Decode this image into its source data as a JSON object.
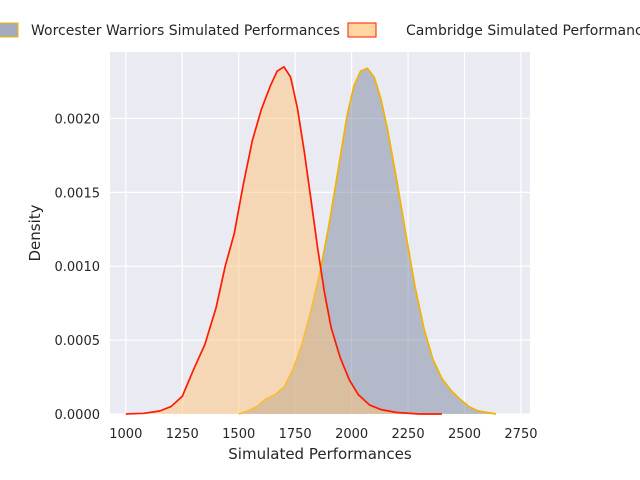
{
  "chart_data": {
    "type": "area",
    "title": "",
    "xlabel": "Simulated Performances",
    "ylabel": "Density",
    "xlim": [
      930,
      2790
    ],
    "ylim": [
      0,
      0.00245
    ],
    "x_ticks": [
      1000,
      1250,
      1500,
      1750,
      2000,
      2250,
      2500,
      2750
    ],
    "x_tick_labels": [
      "1000",
      "1250",
      "1500",
      "1750",
      "2000",
      "2250",
      "2500",
      "2750"
    ],
    "y_ticks": [
      0,
      0.0005,
      0.001,
      0.0015,
      0.002
    ],
    "y_tick_labels": [
      "0.0000",
      "0.0005",
      "0.0010",
      "0.0015",
      "0.0020"
    ],
    "grid": true,
    "legend_position": "top",
    "series": [
      {
        "name": "Worcester Warriors Simulated Performances",
        "fill": "#7d879f",
        "line": "#f0b400",
        "points": [
          [
            1500,
            0
          ],
          [
            1540,
            2e-05
          ],
          [
            1580,
            5e-05
          ],
          [
            1620,
            0.0001
          ],
          [
            1660,
            0.00013
          ],
          [
            1700,
            0.00018
          ],
          [
            1740,
            0.0003
          ],
          [
            1780,
            0.00047
          ],
          [
            1820,
            0.0007
          ],
          [
            1860,
            0.00096
          ],
          [
            1900,
            0.00128
          ],
          [
            1940,
            0.00165
          ],
          [
            1980,
            0.00202
          ],
          [
            2010,
            0.00222
          ],
          [
            2040,
            0.00232
          ],
          [
            2070,
            0.00234
          ],
          [
            2100,
            0.00228
          ],
          [
            2130,
            0.00213
          ],
          [
            2160,
            0.00192
          ],
          [
            2200,
            0.00158
          ],
          [
            2240,
            0.00122
          ],
          [
            2280,
            0.00087
          ],
          [
            2320,
            0.00058
          ],
          [
            2360,
            0.00037
          ],
          [
            2400,
            0.00024
          ],
          [
            2440,
            0.00016
          ],
          [
            2480,
            0.0001
          ],
          [
            2520,
            5e-05
          ],
          [
            2560,
            2e-05
          ],
          [
            2600,
            1e-05
          ],
          [
            2640,
            0
          ]
        ]
      },
      {
        "name": "Cambridge Simulated Performances",
        "fill": "#ffc477",
        "line": "#ff1a00",
        "points": [
          [
            1000,
            0
          ],
          [
            1080,
            5e-06
          ],
          [
            1150,
            2e-05
          ],
          [
            1200,
            5e-05
          ],
          [
            1250,
            0.00012
          ],
          [
            1300,
            0.0003
          ],
          [
            1350,
            0.00047
          ],
          [
            1400,
            0.00072
          ],
          [
            1440,
            0.001
          ],
          [
            1480,
            0.00122
          ],
          [
            1520,
            0.00155
          ],
          [
            1560,
            0.00185
          ],
          [
            1600,
            0.00206
          ],
          [
            1640,
            0.00222
          ],
          [
            1670,
            0.00232
          ],
          [
            1700,
            0.00235
          ],
          [
            1730,
            0.00228
          ],
          [
            1760,
            0.00207
          ],
          [
            1790,
            0.00178
          ],
          [
            1820,
            0.00145
          ],
          [
            1850,
            0.00112
          ],
          [
            1880,
            0.00082
          ],
          [
            1910,
            0.00058
          ],
          [
            1950,
            0.00038
          ],
          [
            1990,
            0.00023
          ],
          [
            2030,
            0.00013
          ],
          [
            2080,
            6e-05
          ],
          [
            2130,
            3e-05
          ],
          [
            2200,
            1e-05
          ],
          [
            2300,
            0
          ],
          [
            2400,
            0
          ]
        ]
      }
    ]
  }
}
